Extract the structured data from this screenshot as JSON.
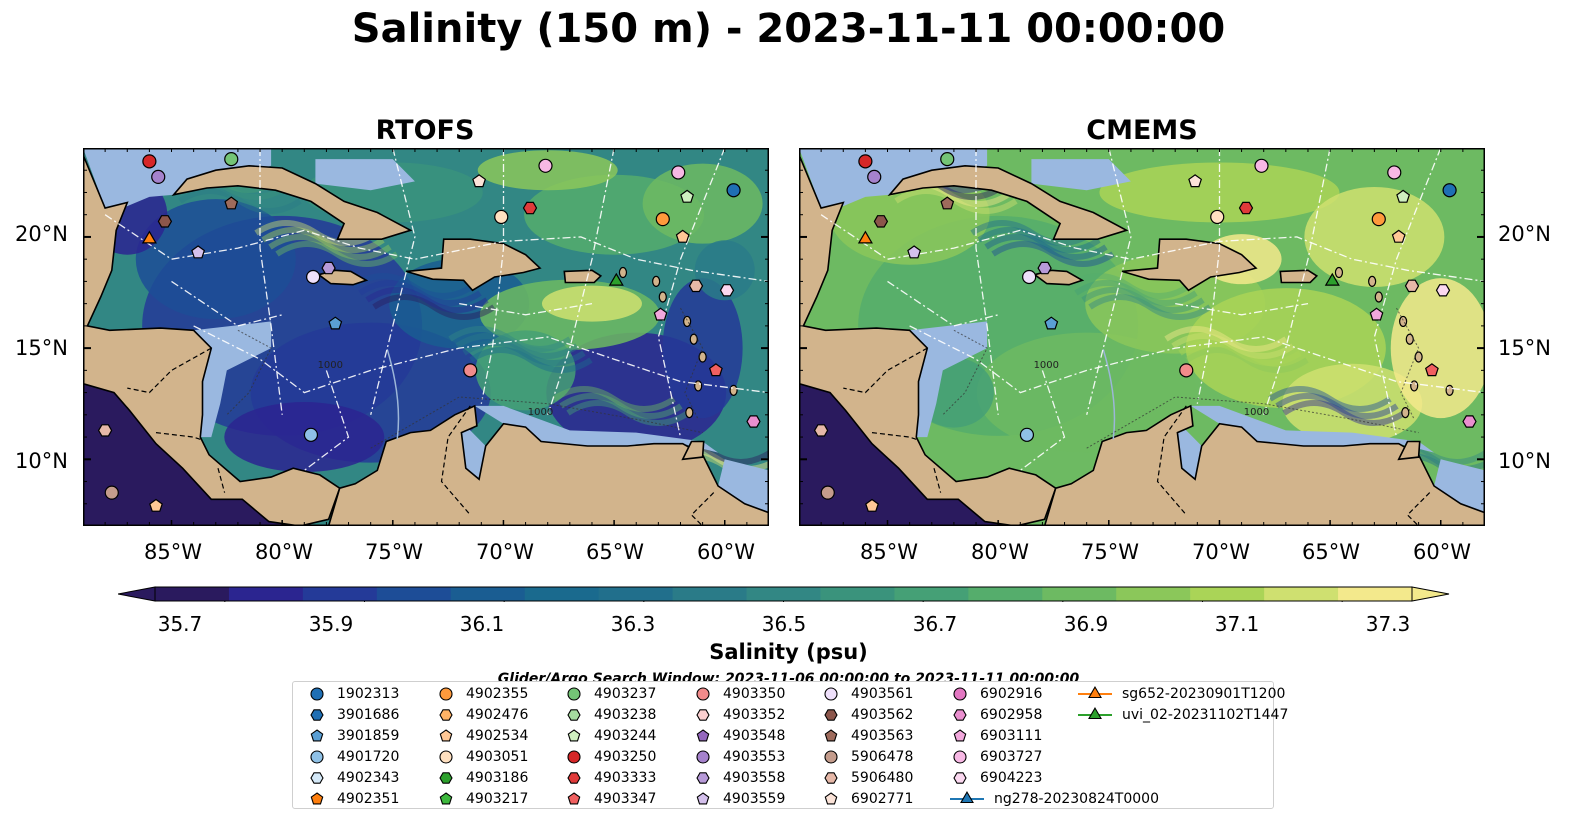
{
  "title": "Salinity (150 m) - 2023-11-11 00:00:00",
  "panels": [
    {
      "title": "RTOFS",
      "key": "rtofs"
    },
    {
      "title": "CMEMS",
      "key": "cmems"
    }
  ],
  "map": {
    "lon_range": [
      -89,
      -58
    ],
    "lat_range": [
      7,
      24
    ],
    "lon_ticks": [
      "85°W",
      "80°W",
      "75°W",
      "70°W",
      "65°W",
      "60°W"
    ],
    "lon_tick_values": [
      -85,
      -80,
      -75,
      -70,
      -65,
      -60
    ],
    "lat_ticks": [
      "20°N",
      "15°N",
      "10°N"
    ],
    "lat_tick_values": [
      20,
      15,
      10
    ],
    "land_color": "#d2b48c",
    "shelf_color": "#9ab8e0",
    "contour_labels": [
      "1000",
      "1000"
    ]
  },
  "colorbar": {
    "label": "Salinity (psu)",
    "ticks": [
      "35.7",
      "35.9",
      "36.1",
      "36.3",
      "36.5",
      "36.7",
      "36.9",
      "37.1",
      "37.3"
    ],
    "min": 35.6,
    "max": 37.4,
    "colors": [
      "#2a1a5e",
      "#2b2590",
      "#243a98",
      "#1d4d97",
      "#1a5d92",
      "#1a6a8e",
      "#216f8c",
      "#2a7b88",
      "#328784",
      "#3a937c",
      "#45a076",
      "#55ad6c",
      "#6dba62",
      "#8bc75a",
      "#aad457",
      "#cfe070",
      "#f3e98c"
    ]
  },
  "search_window": "Glider/Argo Search Window: 2023-11-06 00:00:00 to 2023-11-11 00:00:00",
  "legend": [
    {
      "label": "1902313",
      "marker": "circle",
      "color": "#1f6fb4"
    },
    {
      "label": "3901686",
      "marker": "hexagon",
      "color": "#1f6fb4"
    },
    {
      "label": "3901859",
      "marker": "pentagon",
      "color": "#5a9fd4"
    },
    {
      "label": "4901720",
      "marker": "circle",
      "color": "#8fc1e6"
    },
    {
      "label": "4902343",
      "marker": "hexagon",
      "color": "#d4e8f7"
    },
    {
      "label": "4902351",
      "marker": "pentagon",
      "color": "#ff7f0e"
    },
    {
      "label": "4902355",
      "marker": "circle",
      "color": "#ff9a3c"
    },
    {
      "label": "4902476",
      "marker": "hexagon",
      "color": "#ffb366"
    },
    {
      "label": "4902534",
      "marker": "pentagon",
      "color": "#ffc896"
    },
    {
      "label": "4903051",
      "marker": "circle",
      "color": "#ffe0c0"
    },
    {
      "label": "4903186",
      "marker": "hexagon",
      "color": "#2ca02c"
    },
    {
      "label": "4903217",
      "marker": "pentagon",
      "color": "#3db83d"
    },
    {
      "label": "4903237",
      "marker": "circle",
      "color": "#74c476"
    },
    {
      "label": "4903238",
      "marker": "hexagon",
      "color": "#a6dba0"
    },
    {
      "label": "4903244",
      "marker": "pentagon",
      "color": "#d0f0c0"
    },
    {
      "label": "4903250",
      "marker": "circle",
      "color": "#d62728"
    },
    {
      "label": "4903333",
      "marker": "hexagon",
      "color": "#e03a3a"
    },
    {
      "label": "4903347",
      "marker": "pentagon",
      "color": "#f06060"
    },
    {
      "label": "4903350",
      "marker": "circle",
      "color": "#f28b8b"
    },
    {
      "label": "4903352",
      "marker": "hexagon",
      "color": "#fbd0d0"
    },
    {
      "label": "4903548",
      "marker": "pentagon",
      "color": "#9467bd"
    },
    {
      "label": "4903553",
      "marker": "circle",
      "color": "#a582cc"
    },
    {
      "label": "4903558",
      "marker": "hexagon",
      "color": "#b79ad8"
    },
    {
      "label": "4903559",
      "marker": "pentagon",
      "color": "#d4c0ec"
    },
    {
      "label": "4903561",
      "marker": "circle",
      "color": "#efe0fb"
    },
    {
      "label": "4903562",
      "marker": "hexagon",
      "color": "#8c564b"
    },
    {
      "label": "4903563",
      "marker": "pentagon",
      "color": "#9e6b5c"
    },
    {
      "label": "5906478",
      "marker": "circle",
      "color": "#c49c8c"
    },
    {
      "label": "5906480",
      "marker": "hexagon",
      "color": "#e6b8a8"
    },
    {
      "label": "6902771",
      "marker": "pentagon",
      "color": "#fbe3d8"
    },
    {
      "label": "6902916",
      "marker": "circle",
      "color": "#e377c2"
    },
    {
      "label": "6902958",
      "marker": "hexagon",
      "color": "#ea8fcf"
    },
    {
      "label": "6903111",
      "marker": "pentagon",
      "color": "#f2a8dc"
    },
    {
      "label": "6903727",
      "marker": "circle",
      "color": "#f7b8e4"
    },
    {
      "label": "6904223",
      "marker": "hexagon",
      "color": "#fbd8f0"
    },
    {
      "label": "ng278-20230824T0000",
      "marker": "triangle",
      "color": "#1f77b4"
    },
    {
      "label": "sg652-20230901T1200",
      "marker": "triangle",
      "color": "#ff7f0e"
    },
    {
      "label": "uvi_02-20231102T1447",
      "marker": "triangle",
      "color": "#2ca02c"
    }
  ],
  "markers": [
    {
      "lon": -86.0,
      "lat": 23.4,
      "label": "4903250"
    },
    {
      "lon": -85.6,
      "lat": 22.7,
      "label": "4903553"
    },
    {
      "lon": -82.3,
      "lat": 23.5,
      "label": "4903237"
    },
    {
      "lon": -82.3,
      "lat": 21.5,
      "label": "4903563"
    },
    {
      "lon": -85.3,
      "lat": 20.7,
      "label": "4903562"
    },
    {
      "lon": -86.0,
      "lat": 19.9,
      "label": "sg652-20230901T1200"
    },
    {
      "lon": -83.8,
      "lat": 19.3,
      "label": "4903559"
    },
    {
      "lon": -78.6,
      "lat": 18.2,
      "label": "4903561"
    },
    {
      "lon": -77.9,
      "lat": 18.6,
      "label": "4903558"
    },
    {
      "lon": -77.6,
      "lat": 16.1,
      "label": "3901859"
    },
    {
      "lon": -68.1,
      "lat": 23.2,
      "label": "6903727"
    },
    {
      "lon": -71.1,
      "lat": 22.5,
      "label": "6902771"
    },
    {
      "lon": -70.1,
      "lat": 20.9,
      "label": "4903051"
    },
    {
      "lon": -68.8,
      "lat": 21.3,
      "label": "4903333"
    },
    {
      "lon": -62.1,
      "lat": 22.9,
      "label": "6903727"
    },
    {
      "lon": -61.7,
      "lat": 21.8,
      "label": "4903244"
    },
    {
      "lon": -62.8,
      "lat": 20.8,
      "label": "4902355"
    },
    {
      "lon": -61.9,
      "lat": 20.0,
      "label": "4902534"
    },
    {
      "lon": -59.6,
      "lat": 22.1,
      "label": "1902313"
    },
    {
      "lon": -64.9,
      "lat": 18.0,
      "label": "uvi_02-20231102T1447"
    },
    {
      "lon": -61.3,
      "lat": 17.8,
      "label": "5906480"
    },
    {
      "lon": -59.9,
      "lat": 17.6,
      "label": "6904223"
    },
    {
      "lon": -62.9,
      "lat": 16.5,
      "label": "6903111"
    },
    {
      "lon": -71.5,
      "lat": 14.0,
      "label": "4903350"
    },
    {
      "lon": -60.4,
      "lat": 14.0,
      "label": "4903347"
    },
    {
      "lon": -58.7,
      "lat": 11.7,
      "label": "6902958"
    },
    {
      "lon": -78.7,
      "lat": 11.1,
      "label": "4901720"
    },
    {
      "lon": -88.0,
      "lat": 11.3,
      "label": "5906480"
    },
    {
      "lon": -87.7,
      "lat": 8.5,
      "label": "5906478"
    },
    {
      "lon": -85.7,
      "lat": 7.9,
      "label": "4902534"
    }
  ]
}
